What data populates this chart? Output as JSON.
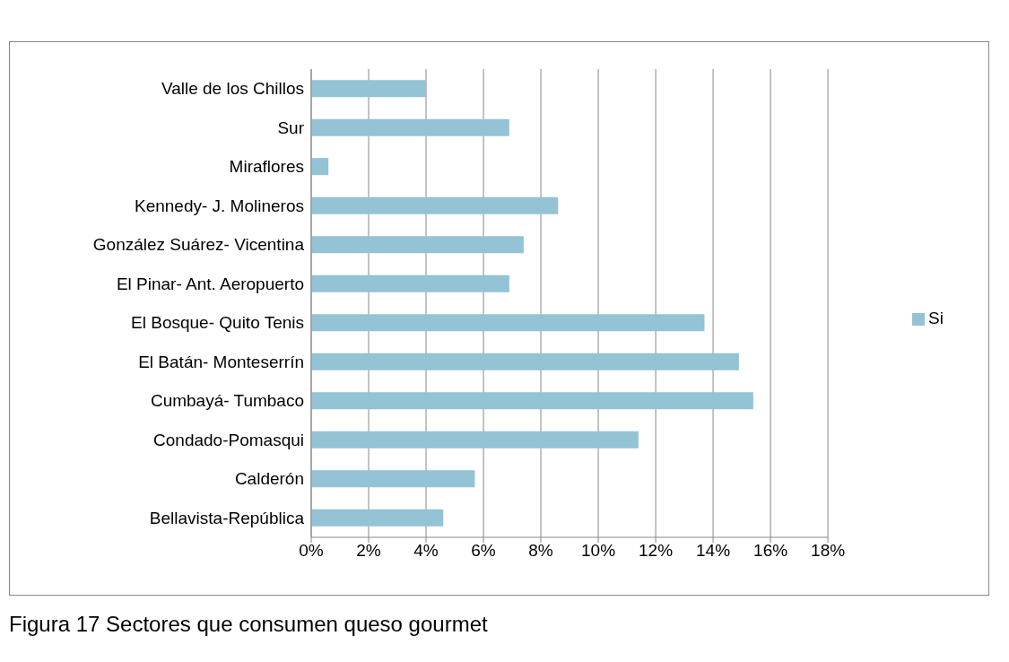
{
  "chart_data": {
    "type": "bar",
    "orientation": "horizontal",
    "categories": [
      "Valle de los Chillos",
      "Sur",
      "Miraflores",
      "Kennedy- J. Molineros",
      "González Suárez- Vicentina",
      "El Pinar- Ant. Aeropuerto",
      "El Bosque- Quito Tenis",
      "El Batán- Monteserrín",
      "Cumbayá- Tumbaco",
      "Condado-Pomasqui",
      "Calderón",
      "Bellavista-República"
    ],
    "series": [
      {
        "name": "Si",
        "color": "#93c3d5",
        "values": [
          4.0,
          6.9,
          0.6,
          8.6,
          7.4,
          6.9,
          13.7,
          14.9,
          15.4,
          11.4,
          5.7,
          4.6
        ]
      }
    ],
    "xlim": [
      0,
      18
    ],
    "xticks": [
      {
        "value": 0,
        "label": "0%"
      },
      {
        "value": 2,
        "label": "2%"
      },
      {
        "value": 4,
        "label": "4%"
      },
      {
        "value": 6,
        "label": "6%"
      },
      {
        "value": 8,
        "label": "8%"
      },
      {
        "value": 10,
        "label": "10%"
      },
      {
        "value": 12,
        "label": "12%"
      },
      {
        "value": 14,
        "label": "14%"
      },
      {
        "value": 16,
        "label": "16%"
      },
      {
        "value": 18,
        "label": "18%"
      }
    ],
    "grid": "x",
    "legend": "right",
    "annotations": [
      "Figura 17 Sectores que consumen queso gourmet"
    ]
  }
}
